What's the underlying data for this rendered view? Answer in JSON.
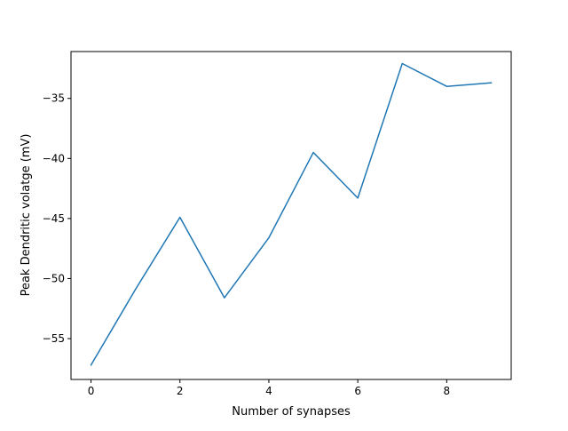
{
  "chart_data": {
    "type": "line",
    "title": "",
    "xlabel": "Number of synapses",
    "ylabel": "Peak Dendritic volatge (mV)",
    "xlim": [
      -0.45,
      9.45
    ],
    "ylim": [
      -58.4,
      -31.1
    ],
    "xticks": [
      0,
      2,
      4,
      6,
      8
    ],
    "xtick_labels": [
      "0",
      "2",
      "4",
      "6",
      "8"
    ],
    "yticks": [
      -55,
      -50,
      -45,
      -40,
      -35
    ],
    "ytick_labels": [
      "−55",
      "−50",
      "−45",
      "−40",
      "−35"
    ],
    "grid": false,
    "legend": "none",
    "series": [
      {
        "color": "#1f77b4",
        "x": [
          0,
          1,
          2,
          3,
          4,
          5,
          6,
          7,
          8,
          9
        ],
        "y": [
          -57.2,
          -50.9,
          -44.9,
          -51.6,
          -46.6,
          -39.5,
          -43.3,
          -32.1,
          -34.0,
          -33.7
        ]
      }
    ]
  }
}
